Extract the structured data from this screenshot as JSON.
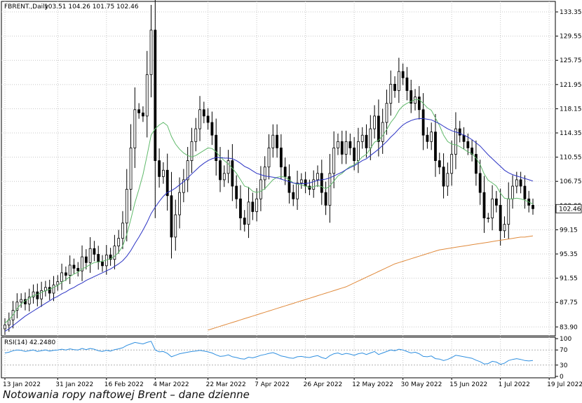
{
  "chart_data": {
    "type": "candlestick",
    "symbol_header": "FBRENT.,Daily",
    "ohlc_header": "103.51 104.26 101.75 102.46",
    "last_price": "102.46",
    "price_ticks": [
      "133.35",
      "129.55",
      "125.75",
      "121.95",
      "118.15",
      "114.35",
      "110.55",
      "106.75",
      "102.95",
      "99.15",
      "95.35",
      "91.55",
      "87.75",
      "83.90"
    ],
    "ylim": [
      82.5,
      135.0
    ],
    "date_ticks": [
      {
        "i": 0,
        "label": "13 Jan 2022"
      },
      {
        "i": 13,
        "label": "31 Jan 2022"
      },
      {
        "i": 25,
        "label": "16 Feb 2022"
      },
      {
        "i": 37,
        "label": "4 Mar 2022"
      },
      {
        "i": 50,
        "label": "22 Mar 2022"
      },
      {
        "i": 62,
        "label": "7 Apr 2022"
      },
      {
        "i": 74,
        "label": "26 Apr 2022"
      },
      {
        "i": 86,
        "label": "12 May 2022"
      },
      {
        "i": 98,
        "label": "30 May 2022"
      },
      {
        "i": 110,
        "label": "15 Jun 2022"
      },
      {
        "i": 122,
        "label": "1 Jul 2022"
      },
      {
        "i": 134,
        "label": "19 Jul 2022"
      }
    ],
    "close": [
      84.2,
      85.0,
      86.5,
      87.8,
      88.2,
      87.5,
      88.6,
      89.4,
      88.3,
      89.6,
      90.1,
      89.2,
      90.5,
      91.0,
      92.4,
      92.0,
      93.6,
      93.1,
      92.7,
      94.9,
      94.0,
      96.2,
      95.3,
      94.1,
      93.5,
      95.2,
      94.5,
      96.6,
      97.8,
      100.2,
      105.5,
      112.0,
      118.0,
      117.5,
      117.0,
      123.5,
      130.5,
      110.0,
      107.5,
      108.5,
      104.5,
      98.0,
      101.5,
      105.0,
      107.0,
      110.0,
      113.0,
      115.0,
      118.0,
      117.0,
      116.0,
      114.0,
      110.0,
      107.0,
      108.0,
      110.0,
      106.0,
      104.0,
      101.0,
      100.0,
      103.5,
      102.0,
      104.0,
      107.0,
      109.0,
      112.0,
      114.0,
      112.0,
      109.0,
      107.5,
      105.0,
      104.0,
      106.5,
      107.0,
      106.0,
      105.5,
      107.0,
      108.0,
      105.0,
      103.0,
      108.0,
      112.0,
      113.0,
      111.0,
      113.0,
      112.0,
      110.0,
      113.0,
      114.0,
      112.0,
      115.0,
      117.0,
      113.0,
      116.0,
      119.0,
      122.0,
      121.0,
      124.0,
      123.0,
      121.0,
      119.0,
      120.0,
      118.0,
      114.0,
      113.0,
      114.5,
      110.0,
      109.0,
      106.0,
      108.0,
      111.0,
      115.0,
      114.0,
      113.0,
      112.0,
      111.0,
      108.0,
      105.0,
      101.0,
      101.0,
      104.0,
      103.0,
      99.0,
      100.0,
      104.0,
      106.0,
      107.0,
      106.0,
      104.0,
      103.0,
      102.46
    ],
    "ma_fast": [
      84.5,
      85.0,
      85.8,
      86.8,
      87.5,
      88.0,
      88.4,
      88.8,
      89.0,
      89.3,
      89.6,
      89.8,
      90.1,
      90.4,
      90.9,
      91.3,
      91.8,
      92.2,
      92.5,
      93.0,
      93.3,
      93.7,
      94.0,
      94.1,
      94.2,
      94.4,
      94.6,
      95.0,
      95.6,
      96.6,
      98.4,
      100.8,
      103.4,
      105.5,
      107.8,
      110.8,
      114.0,
      115.0,
      115.6,
      116.0,
      115.5,
      113.8,
      112.6,
      111.8,
      111.2,
      110.8,
      110.6,
      110.8,
      111.2,
      111.6,
      112.0,
      111.9,
      111.4,
      110.6,
      110.0,
      109.5,
      108.8,
      108.0,
      107.0,
      106.0,
      105.8,
      105.2,
      105.0,
      105.2,
      105.6,
      106.3,
      107.0,
      107.4,
      107.5,
      107.4,
      107.0,
      106.5,
      106.3,
      106.2,
      106.0,
      105.8,
      105.9,
      106.1,
      105.9,
      105.6,
      106.0,
      106.8,
      107.6,
      108.0,
      108.6,
      109.1,
      109.3,
      109.9,
      110.6,
      111.0,
      111.9,
      112.9,
      113.2,
      113.9,
      114.9,
      116.0,
      116.8,
      117.9,
      118.6,
      119.0,
      119.3,
      119.6,
      119.6,
      119.0,
      118.3,
      117.9,
      116.7,
      115.5,
      114.0,
      113.0,
      112.6,
      112.5,
      112.2,
      111.8,
      111.4,
      111.1,
      110.4,
      109.4,
      107.9,
      106.9,
      106.5,
      106.0,
      104.9,
      104.1,
      104.0,
      104.0,
      104.1,
      104.0,
      103.8,
      103.5,
      103.2
    ],
    "ma_mid": [
      83.2,
      83.6,
      84.1,
      84.6,
      85.1,
      85.6,
      86.0,
      86.4,
      86.8,
      87.2,
      87.6,
      88.0,
      88.4,
      88.7,
      89.1,
      89.4,
      89.8,
      90.1,
      90.5,
      90.8,
      91.2,
      91.5,
      91.8,
      92.1,
      92.4,
      92.7,
      93.0,
      93.4,
      93.8,
      94.3,
      95.0,
      95.9,
      97.0,
      98.0,
      99.1,
      100.3,
      101.7,
      102.7,
      103.6,
      104.4,
      105.0,
      105.3,
      105.7,
      106.2,
      106.7,
      107.3,
      107.9,
      108.5,
      109.1,
      109.6,
      110.0,
      110.3,
      110.5,
      110.5,
      110.4,
      110.4,
      110.3,
      110.0,
      109.6,
      109.1,
      108.8,
      108.4,
      108.0,
      107.8,
      107.6,
      107.5,
      107.4,
      107.3,
      107.1,
      106.9,
      106.7,
      106.5,
      106.4,
      106.4,
      106.4,
      106.5,
      106.7,
      106.9,
      107.0,
      107.1,
      107.3,
      107.6,
      107.9,
      108.2,
      108.6,
      108.9,
      109.2,
      109.6,
      110.0,
      110.3,
      110.8,
      111.3,
      111.8,
      112.4,
      113.0,
      113.7,
      114.3,
      115.0,
      115.6,
      116.0,
      116.3,
      116.5,
      116.6,
      116.6,
      116.5,
      116.4,
      116.1,
      115.8,
      115.4,
      115.0,
      114.7,
      114.5,
      114.3,
      114.0,
      113.7,
      113.3,
      112.8,
      112.3,
      111.6,
      110.9,
      110.3,
      109.7,
      109.1,
      108.5,
      108.1,
      107.8,
      107.6,
      107.4,
      107.2,
      107.0,
      106.8
    ],
    "ma_slow": [
      null,
      null,
      null,
      null,
      null,
      null,
      null,
      null,
      null,
      null,
      null,
      null,
      null,
      null,
      null,
      null,
      null,
      null,
      null,
      null,
      null,
      null,
      null,
      null,
      null,
      null,
      null,
      null,
      null,
      null,
      null,
      null,
      null,
      null,
      null,
      null,
      null,
      null,
      null,
      null,
      null,
      null,
      null,
      null,
      null,
      null,
      null,
      null,
      null,
      null,
      83.4,
      83.6,
      83.8,
      84.0,
      84.2,
      84.4,
      84.6,
      84.8,
      85.0,
      85.2,
      85.4,
      85.6,
      85.8,
      86.0,
      86.2,
      86.4,
      86.6,
      86.8,
      87.0,
      87.2,
      87.4,
      87.6,
      87.8,
      88.0,
      88.2,
      88.4,
      88.6,
      88.8,
      89.0,
      89.2,
      89.4,
      89.6,
      89.8,
      90.0,
      90.2,
      90.5,
      90.8,
      91.1,
      91.4,
      91.7,
      92.0,
      92.3,
      92.6,
      92.9,
      93.2,
      93.5,
      93.8,
      94.0,
      94.2,
      94.4,
      94.6,
      94.8,
      95.0,
      95.2,
      95.4,
      95.6,
      95.8,
      96.0,
      96.1,
      96.2,
      96.3,
      96.4,
      96.5,
      96.6,
      96.7,
      96.8,
      96.9,
      97.0,
      97.1,
      97.2,
      97.3,
      97.4,
      97.5,
      97.6,
      97.7,
      97.8,
      97.9,
      98.0,
      98.0,
      98.1,
      98.2
    ],
    "rsi": {
      "label": "RSI(14) 42.2480",
      "levels": [
        "100",
        "70",
        "30",
        "0"
      ],
      "ylim": [
        0,
        100
      ],
      "values": [
        62,
        64,
        68,
        70,
        69,
        66,
        68,
        70,
        66,
        68,
        70,
        67,
        69,
        70,
        72,
        70,
        73,
        71,
        70,
        74,
        71,
        74,
        72,
        68,
        66,
        69,
        67,
        71,
        73,
        76,
        82,
        86,
        90,
        88,
        86,
        90,
        93,
        70,
        65,
        66,
        61,
        52,
        56,
        60,
        62,
        64,
        66,
        67,
        69,
        67,
        65,
        62,
        57,
        53,
        54,
        57,
        52,
        50,
        47,
        46,
        51,
        49,
        52,
        56,
        58,
        61,
        63,
        59,
        54,
        52,
        49,
        48,
        52,
        53,
        51,
        50,
        53,
        55,
        50,
        47,
        55,
        60,
        62,
        58,
        61,
        59,
        56,
        60,
        62,
        58,
        62,
        66,
        58,
        62,
        66,
        70,
        68,
        72,
        70,
        66,
        62,
        64,
        60,
        53,
        52,
        54,
        47,
        46,
        42,
        45,
        50,
        56,
        54,
        52,
        50,
        48,
        43,
        39,
        33,
        34,
        40,
        38,
        32,
        35,
        42,
        45,
        47,
        45,
        42,
        41,
        42.25
      ]
    }
  },
  "caption": "Notowania ropy naftowej Brent – dane dzienne"
}
